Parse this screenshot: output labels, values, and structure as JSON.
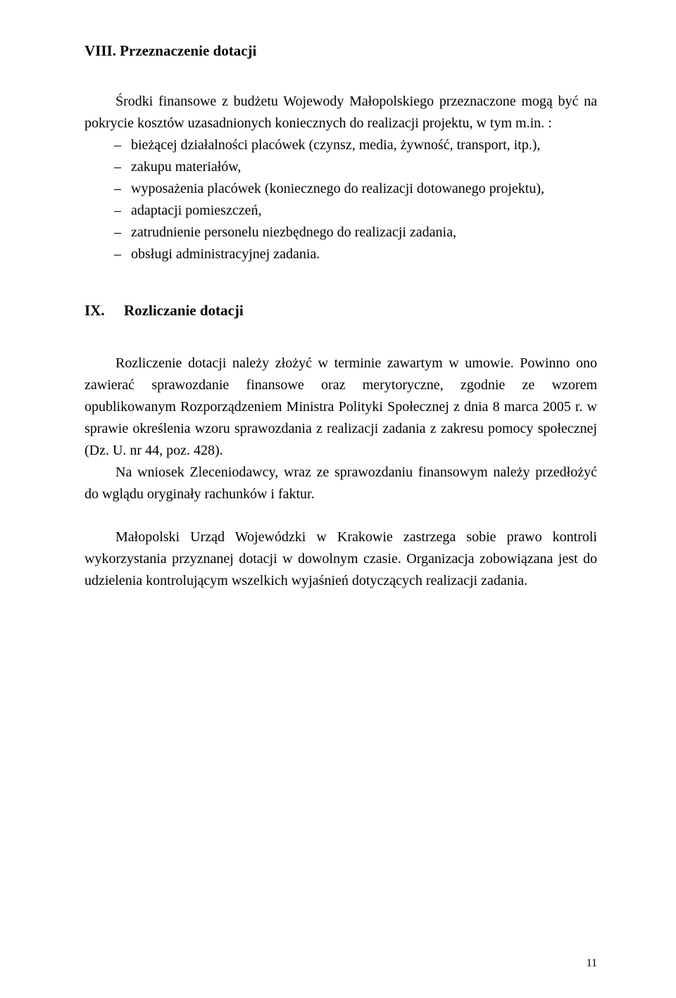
{
  "section8": {
    "heading": "VIII. Przeznaczenie dotacji",
    "intro_l1": "Środki finansowe z budżetu Wojewody Małopolskiego przeznaczone mogą być na",
    "intro_l2": "pokrycie kosztów uzasadnionych koniecznych do realizacji projektu, w tym m.in. :",
    "bullets": [
      "bieżącej działalności placówek (czynsz, media, żywność, transport, itp.),",
      "zakupu materiałów,",
      "wyposażenia placówek (koniecznego do realizacji dotowanego projektu),",
      "adaptacji pomieszczeń,",
      "zatrudnienie personelu niezbędnego do realizacji zadania,",
      "obsługi administracyjnej zadania."
    ]
  },
  "section9": {
    "num": "IX.",
    "title": "Rozliczanie dotacji",
    "p1": "Rozliczenie dotacji należy złożyć w terminie zawartym w umowie. Powinno ono zawierać sprawozdanie finansowe oraz merytoryczne, zgodnie ze wzorem opublikowanym Rozporządzeniem Ministra Polityki Społecznej z dnia 8 marca 2005 r. w sprawie określenia wzoru sprawozdania z realizacji zadania z zakresu pomocy społecznej (Dz. U. nr 44, poz. 428).",
    "p2": "Na wniosek Zleceniodawcy, wraz ze sprawozdaniu finansowym należy przedłożyć do wglądu oryginały rachunków i faktur.",
    "p3": "Małopolski Urząd Wojewódzki w Krakowie zastrzega sobie prawo kontroli wykorzystania przyznanej dotacji w dowolnym czasie. Organizacja zobowiązana jest do udzielenia kontrolującym wszelkich wyjaśnień dotyczących realizacji zadania."
  },
  "pageNumber": "11"
}
